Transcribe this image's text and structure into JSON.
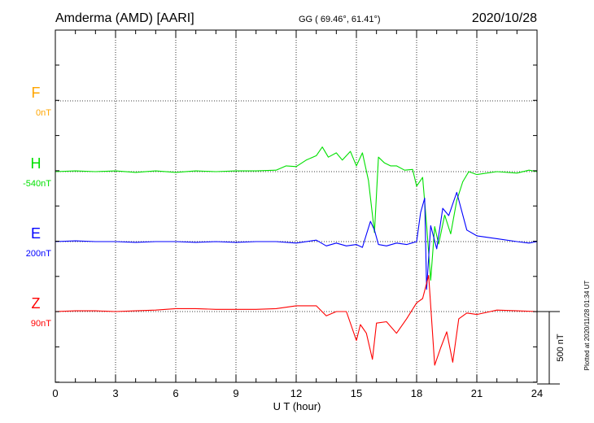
{
  "chart_data": {
    "type": "line",
    "title_left": "Amderma (AMD)  [AARI]",
    "title_center": "GG ( 69.46°,  61.41°)",
    "title_right": "2020/10/28",
    "xlabel": "U T (hour)",
    "xlim": [
      0,
      24
    ],
    "x_ticks": [
      0,
      3,
      6,
      9,
      12,
      15,
      18,
      21,
      24
    ],
    "x_tick_labels": [
      "0",
      "3",
      "6",
      "9",
      "12",
      "15",
      "18",
      "21",
      "24"
    ],
    "scale_bar": {
      "label": "500 nT",
      "value": 500
    },
    "plotted_note": "Plotted at 2020/11/28 01:34 UT",
    "grid": true,
    "series": [
      {
        "name": "F",
        "offset_label": "0nT",
        "color": "#ffa500",
        "points": []
      },
      {
        "name": "H",
        "offset_label": "-540nT",
        "color": "#00e000",
        "points": [
          [
            0,
            0
          ],
          [
            1,
            5
          ],
          [
            2,
            0
          ],
          [
            3,
            5
          ],
          [
            4,
            -5
          ],
          [
            5,
            5
          ],
          [
            6,
            -5
          ],
          [
            7,
            5
          ],
          [
            8,
            0
          ],
          [
            9,
            5
          ],
          [
            10,
            5
          ],
          [
            11,
            10
          ],
          [
            11.5,
            40
          ],
          [
            12,
            35
          ],
          [
            12.5,
            80
          ],
          [
            13,
            110
          ],
          [
            13.3,
            170
          ],
          [
            13.6,
            100
          ],
          [
            14,
            130
          ],
          [
            14.3,
            80
          ],
          [
            14.7,
            140
          ],
          [
            15,
            40
          ],
          [
            15.3,
            130
          ],
          [
            15.6,
            -60
          ],
          [
            15.9,
            -420
          ],
          [
            16.1,
            100
          ],
          [
            16.4,
            60
          ],
          [
            16.7,
            40
          ],
          [
            17,
            40
          ],
          [
            17.4,
            10
          ],
          [
            17.8,
            15
          ],
          [
            18,
            -100
          ],
          [
            18.3,
            -40
          ],
          [
            18.5,
            -370
          ],
          [
            18.7,
            -750
          ],
          [
            18.9,
            -380
          ],
          [
            19.1,
            -500
          ],
          [
            19.4,
            -300
          ],
          [
            19.7,
            -430
          ],
          [
            20,
            -200
          ],
          [
            20.3,
            -70
          ],
          [
            20.6,
            0
          ],
          [
            21,
            -20
          ],
          [
            22,
            0
          ],
          [
            23,
            -10
          ],
          [
            23.6,
            10
          ],
          [
            24,
            0
          ]
        ]
      },
      {
        "name": "E",
        "offset_label": "200nT",
        "color": "#0000ff",
        "points": [
          [
            0,
            0
          ],
          [
            1,
            5
          ],
          [
            2,
            0
          ],
          [
            3,
            0
          ],
          [
            4,
            -5
          ],
          [
            5,
            0
          ],
          [
            6,
            0
          ],
          [
            7,
            -5
          ],
          [
            8,
            0
          ],
          [
            9,
            -5
          ],
          [
            10,
            0
          ],
          [
            11,
            0
          ],
          [
            12,
            -10
          ],
          [
            13,
            10
          ],
          [
            13.5,
            -30
          ],
          [
            14,
            -10
          ],
          [
            14.5,
            -30
          ],
          [
            15,
            -20
          ],
          [
            15.3,
            -40
          ],
          [
            15.5,
            50
          ],
          [
            15.7,
            140
          ],
          [
            15.9,
            80
          ],
          [
            16.1,
            -20
          ],
          [
            16.5,
            -30
          ],
          [
            17,
            -10
          ],
          [
            17.5,
            -20
          ],
          [
            18,
            0
          ],
          [
            18.2,
            200
          ],
          [
            18.4,
            300
          ],
          [
            18.5,
            -330
          ],
          [
            18.7,
            110
          ],
          [
            19,
            -50
          ],
          [
            19.3,
            230
          ],
          [
            19.6,
            180
          ],
          [
            20,
            340
          ],
          [
            20.5,
            80
          ],
          [
            21,
            40
          ],
          [
            22,
            20
          ],
          [
            23,
            0
          ],
          [
            23.6,
            -10
          ],
          [
            24,
            0
          ]
        ]
      },
      {
        "name": "Z",
        "offset_label": "90nT",
        "color": "#ff0000",
        "points": [
          [
            0,
            0
          ],
          [
            1,
            5
          ],
          [
            2,
            5
          ],
          [
            3,
            0
          ],
          [
            4,
            5
          ],
          [
            5,
            10
          ],
          [
            6,
            20
          ],
          [
            7,
            20
          ],
          [
            8,
            15
          ],
          [
            9,
            15
          ],
          [
            10,
            15
          ],
          [
            11,
            20
          ],
          [
            12,
            40
          ],
          [
            13,
            40
          ],
          [
            13.5,
            -30
          ],
          [
            14,
            0
          ],
          [
            14.5,
            0
          ],
          [
            15,
            -200
          ],
          [
            15.2,
            -90
          ],
          [
            15.5,
            -150
          ],
          [
            15.8,
            -330
          ],
          [
            16,
            -80
          ],
          [
            16.5,
            -70
          ],
          [
            17,
            -150
          ],
          [
            17.5,
            -50
          ],
          [
            18,
            60
          ],
          [
            18.3,
            90
          ],
          [
            18.6,
            250
          ],
          [
            18.9,
            -370
          ],
          [
            19.2,
            -250
          ],
          [
            19.5,
            -140
          ],
          [
            19.8,
            -350
          ],
          [
            20.1,
            -50
          ],
          [
            20.5,
            -10
          ],
          [
            21,
            -20
          ],
          [
            22,
            10
          ],
          [
            23,
            5
          ],
          [
            24,
            0
          ]
        ]
      }
    ]
  }
}
